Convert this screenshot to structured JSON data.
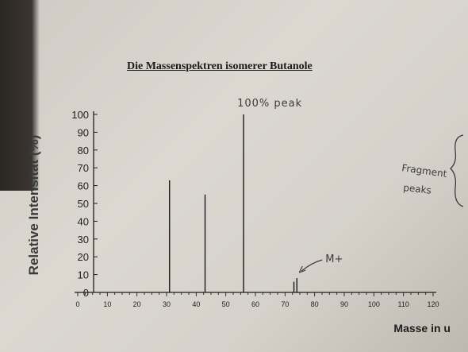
{
  "chart_data": {
    "type": "bar",
    "title": "Die Massenspektren isomerer Butanole",
    "xlabel": "Masse in u",
    "ylabel": "Relative Intensität (%)",
    "xlim": [
      0,
      120
    ],
    "ylim": [
      0,
      100
    ],
    "x_ticks": [
      0,
      10,
      20,
      30,
      40,
      50,
      60,
      70,
      80,
      90,
      100,
      110,
      120
    ],
    "y_ticks": [
      0,
      10,
      20,
      30,
      40,
      50,
      60,
      70,
      80,
      90,
      100
    ],
    "peaks": [
      {
        "x": 31,
        "y": 63
      },
      {
        "x": 43,
        "y": 55
      },
      {
        "x": 56,
        "y": 100
      },
      {
        "x": 73,
        "y": 6
      },
      {
        "x": 74,
        "y": 8
      }
    ],
    "grid": false,
    "annotations": [
      {
        "text": "100% peak",
        "target_x": 56
      },
      {
        "text": "M+",
        "target_x": 74
      },
      {
        "text": "Fragment",
        "target_x": null
      },
      {
        "text": "peaks",
        "target_x": null
      }
    ]
  }
}
